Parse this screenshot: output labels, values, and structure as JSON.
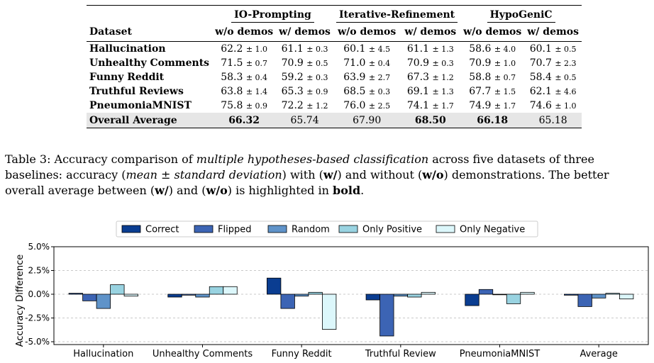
{
  "table": {
    "groups": [
      {
        "name": "IO-Prompting"
      },
      {
        "name": "Iterative-Refinement"
      },
      {
        "name": "HypoGeniC"
      }
    ],
    "dataset_header": "Dataset",
    "subheaders": [
      "w/o demos",
      "w/ demos",
      "w/o demos",
      "w/ demos",
      "w/o demos",
      "w/ demos"
    ],
    "rows": [
      {
        "dataset": "Hallucination",
        "cells": [
          {
            "mean": "62.2",
            "pm": "± 1.0"
          },
          {
            "mean": "61.1",
            "pm": "± 0.3"
          },
          {
            "mean": "60.1",
            "pm": "± 4.5"
          },
          {
            "mean": "61.1",
            "pm": "± 1.3"
          },
          {
            "mean": "58.6",
            "pm": "± 4.0"
          },
          {
            "mean": "60.1",
            "pm": "± 0.5"
          }
        ]
      },
      {
        "dataset": "Unhealthy Comments",
        "cells": [
          {
            "mean": "71.5",
            "pm": "± 0.7"
          },
          {
            "mean": "70.9",
            "pm": "± 0.5"
          },
          {
            "mean": "71.0",
            "pm": "± 0.4"
          },
          {
            "mean": "70.9",
            "pm": "± 0.3"
          },
          {
            "mean": "70.9",
            "pm": "± 1.0"
          },
          {
            "mean": "70.7",
            "pm": "± 2.3"
          }
        ]
      },
      {
        "dataset": "Funny Reddit",
        "cells": [
          {
            "mean": "58.3",
            "pm": "± 0.4"
          },
          {
            "mean": "59.2",
            "pm": "± 0.3"
          },
          {
            "mean": "63.9",
            "pm": "± 2.7"
          },
          {
            "mean": "67.3",
            "pm": "± 1.2"
          },
          {
            "mean": "58.8",
            "pm": "± 0.7"
          },
          {
            "mean": "58.4",
            "pm": "± 0.5"
          }
        ]
      },
      {
        "dataset": "Truthful Reviews",
        "cells": [
          {
            "mean": "63.8",
            "pm": "± 1.4"
          },
          {
            "mean": "65.3",
            "pm": "± 0.9"
          },
          {
            "mean": "68.5",
            "pm": "± 0.3"
          },
          {
            "mean": "69.1",
            "pm": "± 1.3"
          },
          {
            "mean": "67.7",
            "pm": "± 1.5"
          },
          {
            "mean": "62.1",
            "pm": "± 4.6"
          }
        ]
      },
      {
        "dataset": "PneumoniaMNIST",
        "cells": [
          {
            "mean": "75.8",
            "pm": "± 0.9"
          },
          {
            "mean": "72.2",
            "pm": "± 1.2"
          },
          {
            "mean": "76.0",
            "pm": "± 2.5"
          },
          {
            "mean": "74.1",
            "pm": "± 1.7"
          },
          {
            "mean": "74.9",
            "pm": "± 1.7"
          },
          {
            "mean": "74.6",
            "pm": "± 1.0"
          }
        ]
      }
    ],
    "average_row": {
      "label": "Overall Average",
      "values": [
        "66.32",
        "65.74",
        "67.90",
        "68.50",
        "66.18",
        "65.18"
      ],
      "bold": [
        true,
        false,
        false,
        true,
        true,
        false
      ]
    }
  },
  "caption": {
    "t1": "Table 3: Accuracy comparison of ",
    "t2": "multiple hypotheses-based classification",
    "t3": " across five datasets of three baselines: accuracy (",
    "t4": "mean",
    "t5": " ± ",
    "t6": "standard deviation",
    "t7": ") with (",
    "t8": "w/",
    "t9": ") and without (",
    "t10": "w/o",
    "t11": ") demonstrations. The better overall average between (",
    "t12": "w/",
    "t13": ") and (",
    "t14": "w/o",
    "t15": ") is highlighted in ",
    "t16": "bold",
    "t17": "."
  },
  "chart_data": {
    "type": "bar",
    "categories": [
      "Hallucination",
      "Unhealthy Comments",
      "Funny Reddit",
      "Truthful Review",
      "PneumoniaMNIST",
      "Average"
    ],
    "series": [
      {
        "name": "Correct",
        "color": "#0a3d91",
        "values": [
          0.1,
          -0.3,
          1.7,
          -0.6,
          -1.2,
          -0.1
        ]
      },
      {
        "name": "Flipped",
        "color": "#3c64b4",
        "values": [
          -0.7,
          -0.1,
          -1.5,
          -4.4,
          0.5,
          -1.3
        ]
      },
      {
        "name": "Random",
        "color": "#5f93c9",
        "values": [
          -1.5,
          -0.3,
          -0.2,
          -0.2,
          0.0,
          -0.4
        ]
      },
      {
        "name": "Only Positive",
        "color": "#99d3e1",
        "values": [
          1.0,
          0.8,
          0.2,
          -0.3,
          -1.0,
          0.1
        ]
      },
      {
        "name": "Only Negative",
        "color": "#dcf7fb",
        "values": [
          -0.2,
          0.8,
          -3.7,
          0.2,
          0.2,
          -0.5
        ]
      }
    ],
    "ylabel": "Accuracy Difference",
    "yticks": [
      "5.0%",
      "2.5%",
      "0.0%",
      "-2.5%",
      "-5.0%"
    ],
    "ylim": [
      -5.3,
      5.0
    ],
    "grid": true,
    "legend_position": "top"
  }
}
